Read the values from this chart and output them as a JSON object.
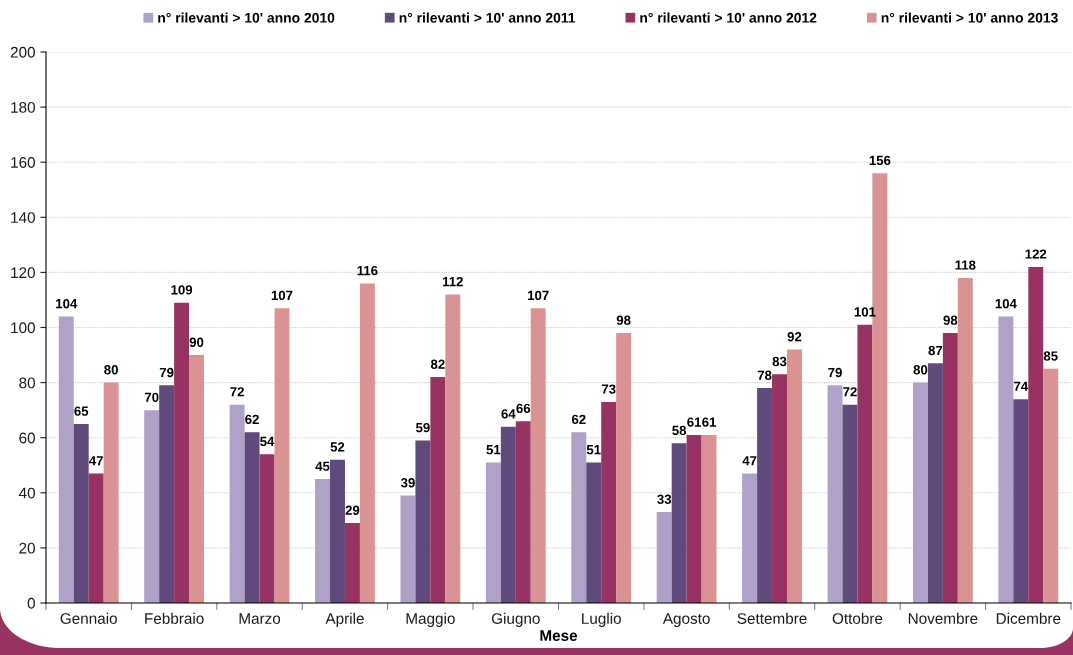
{
  "chart_data": {
    "type": "bar",
    "xlabel": "Mese",
    "categories": [
      "Gennaio",
      "Febbraio",
      "Marzo",
      "Aprile",
      "Maggio",
      "Giugno",
      "Luglio",
      "Agosto",
      "Settembre",
      "Ottobre",
      "Novembre",
      "Dicembre"
    ],
    "series": [
      {
        "name": "n° rilevanti > 10' anno 2010",
        "color": "#b0a1c8",
        "values": [
          104,
          70,
          72,
          45,
          39,
          51,
          62,
          33,
          47,
          79,
          80,
          104
        ]
      },
      {
        "name": "n° rilevanti > 10' anno 2011",
        "color": "#5f4a7b",
        "values": [
          65,
          79,
          62,
          52,
          59,
          64,
          51,
          58,
          78,
          72,
          87,
          74
        ]
      },
      {
        "name": "n° rilevanti > 10' anno 2012",
        "color": "#983262",
        "values": [
          47,
          109,
          54,
          29,
          82,
          66,
          73,
          61,
          83,
          101,
          98,
          122
        ]
      },
      {
        "name": "n° rilevanti > 10' anno 2013",
        "color": "#d99392",
        "values": [
          80,
          90,
          107,
          116,
          112,
          107,
          98,
          61,
          92,
          156,
          118,
          85
        ]
      }
    ],
    "ylim": [
      0,
      200
    ],
    "yticks": [
      0,
      20,
      40,
      60,
      80,
      100,
      120,
      140,
      160,
      180,
      200
    ],
    "grid": "y",
    "legend": "top",
    "data_labels": true
  }
}
